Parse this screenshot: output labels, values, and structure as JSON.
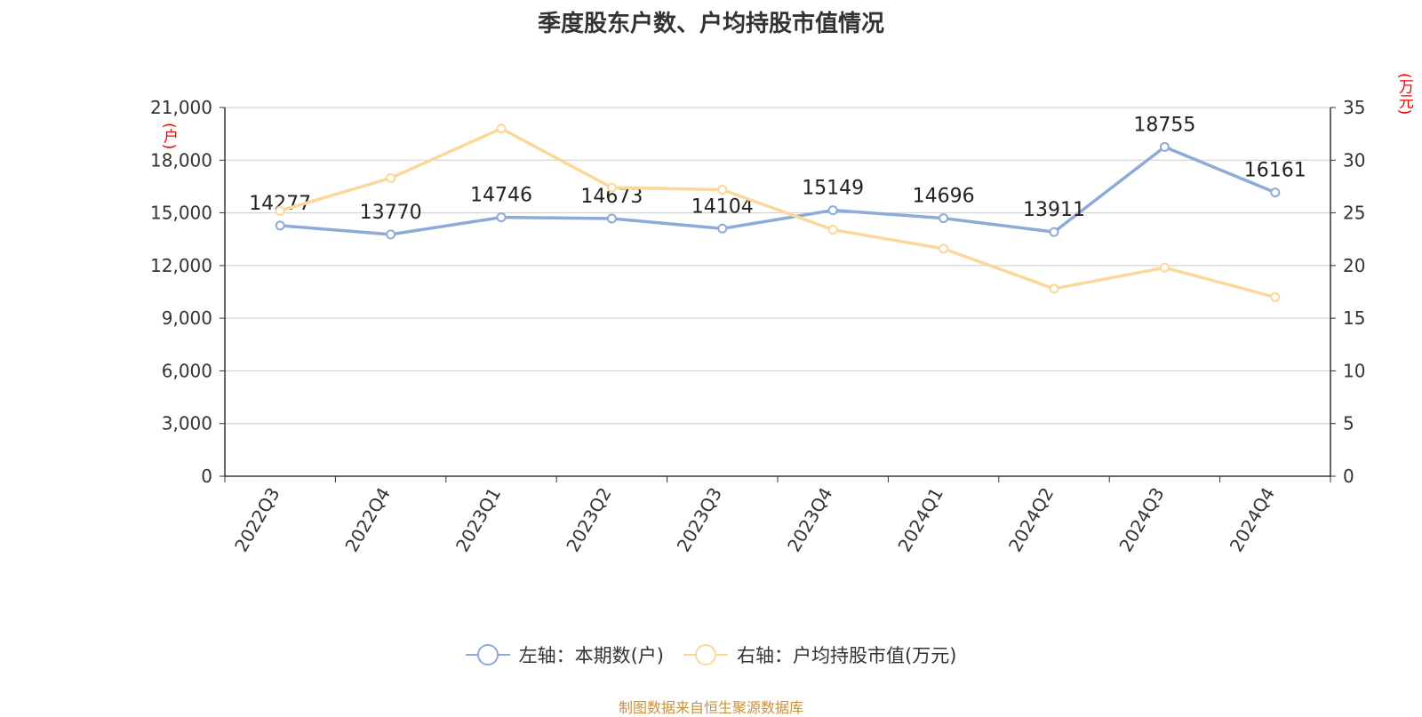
{
  "chart_data": {
    "type": "line",
    "title": "季度股东户数、户均持股市值情况",
    "categories": [
      "2022Q3",
      "2022Q4",
      "2023Q1",
      "2023Q2",
      "2023Q3",
      "2023Q4",
      "2024Q1",
      "2024Q2",
      "2024Q3",
      "2024Q4"
    ],
    "series": [
      {
        "name": "左轴：本期数(户)",
        "axis": "left",
        "color": "#8eaad8",
        "values": [
          14277,
          13770,
          14746,
          14673,
          14104,
          15149,
          14696,
          13911,
          18755,
          16161
        ],
        "data_labels": [
          "14277",
          "13770",
          "14746",
          "14673",
          "14104",
          "15149",
          "14696",
          "13911",
          "18755",
          "16161"
        ]
      },
      {
        "name": "右轴：户均持股市值(万元)",
        "axis": "right",
        "color": "#fbd89a",
        "values": [
          25.2,
          28.3,
          33.0,
          27.4,
          27.2,
          23.4,
          21.6,
          17.8,
          19.8,
          17.0
        ]
      }
    ],
    "left_axis": {
      "unit": "(户)",
      "ylim": [
        0,
        21000
      ],
      "ticks": [
        0,
        3000,
        6000,
        9000,
        12000,
        15000,
        18000,
        21000
      ],
      "tick_labels": [
        "0",
        "3,000",
        "6,000",
        "9,000",
        "12,000",
        "15,000",
        "18,000",
        "21,000"
      ]
    },
    "right_axis": {
      "unit": "(万元)",
      "ylim": [
        0,
        35
      ],
      "ticks": [
        0,
        5,
        10,
        15,
        20,
        25,
        30,
        35
      ],
      "tick_labels": [
        "0",
        "5",
        "10",
        "15",
        "20",
        "25",
        "30",
        "35"
      ]
    },
    "grid": true,
    "legend_position": "bottom-center",
    "source": "制图数据来自恒生聚源数据库"
  }
}
